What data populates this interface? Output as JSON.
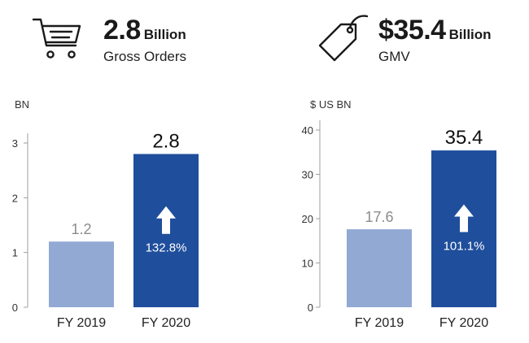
{
  "colors": {
    "bar_prev": "#92a9d3",
    "bar_curr": "#1f4e9c",
    "axis": "#9aa0a6",
    "icon": "#1a1a1a"
  },
  "panels": [
    {
      "icon": "shopping-cart-icon",
      "headline_value": "2.8",
      "headline_unit": "Billion",
      "metric": "Gross Orders"
    },
    {
      "icon": "price-tag-icon",
      "headline_value": "$35.4",
      "headline_unit": "Billion",
      "metric": "GMV"
    }
  ],
  "chart_data": [
    {
      "type": "bar",
      "title": "",
      "ylabel": "BN",
      "xlabel": "",
      "categories": [
        "FY 2019",
        "FY 2020"
      ],
      "values": [
        1.2,
        2.8
      ],
      "value_labels": [
        "1.2",
        "2.8"
      ],
      "ylim": [
        0,
        3
      ],
      "yticks": [
        0,
        1,
        2,
        3
      ],
      "ytick_labels": [
        "0",
        "1",
        "2",
        "3"
      ],
      "growth_label": "132.8%",
      "grid": false,
      "legend": "none"
    },
    {
      "type": "bar",
      "title": "",
      "ylabel": "$ US BN",
      "xlabel": "",
      "categories": [
        "FY 2019",
        "FY 2020"
      ],
      "values": [
        17.6,
        35.4
      ],
      "value_labels": [
        "17.6",
        "35.4"
      ],
      "ylim": [
        0,
        40
      ],
      "yticks": [
        0,
        10,
        20,
        30,
        40
      ],
      "ytick_labels": [
        "0",
        "10",
        "20",
        "30",
        "40"
      ],
      "growth_label": "101.1%",
      "grid": false,
      "legend": "none"
    }
  ]
}
